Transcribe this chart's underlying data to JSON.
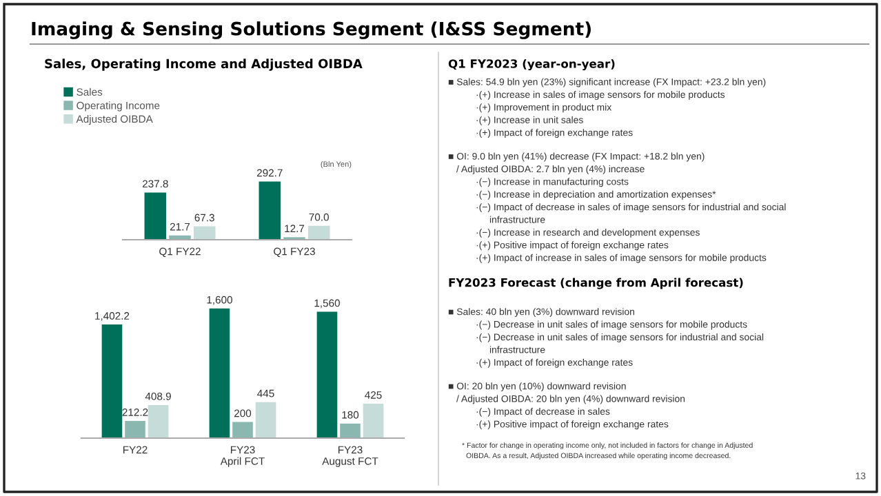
{
  "chart_data": [
    {
      "type": "bar",
      "title": "Imaging & Sensing Solutions Segment (I&SS Segment)",
      "subtitle": "Sales, Operating Income and Adjusted OIBDA",
      "ylabel": "(Bln Yen)",
      "categories": [
        "Q1 FY22",
        "Q1 FY23"
      ],
      "series": [
        {
          "name": "Sales",
          "color": "#00705a",
          "values": [
            237.8,
            292.7
          ],
          "value_labels": [
            "237.8",
            "292.7"
          ]
        },
        {
          "name": "Operating Income",
          "color": "#8ab8b0",
          "values": [
            21.7,
            12.7
          ],
          "value_labels": [
            "21.7",
            "12.7"
          ]
        },
        {
          "name": "Adjusted OIBDA",
          "color": "#c5dcd8",
          "values": [
            67.3,
            70.0
          ],
          "value_labels": [
            "67.3",
            "70.0"
          ]
        }
      ],
      "legend": "top left"
    },
    {
      "type": "bar",
      "categories": [
        "FY22",
        "FY23\nApril FCT",
        "FY23\nAugust FCT"
      ],
      "series": [
        {
          "color": "#00705a",
          "values": [
            1402.2,
            1600,
            1560
          ],
          "value_labels": [
            "1,402.2",
            "1,600",
            "1,560"
          ]
        },
        {
          "color": "#8ab8b0",
          "values": [
            212.2,
            200,
            180
          ],
          "value_labels": [
            "212.2",
            "200",
            "180"
          ]
        },
        {
          "color": "#c5dcd8",
          "values": [
            408.9,
            445,
            425
          ],
          "value_labels": [
            "408.9",
            "445",
            "425"
          ]
        }
      ]
    },
    {
      "type": "other",
      "title": "Q1 FY2023 (year-on-year)",
      "annotations": [
        "■ Sales: 54.9 bln yen (23%) significant increase (FX Impact: +23.2 bln yen)",
        "·(+) Increase in sales of image sensors for mobile products",
        "·(+) Improvement in product mix",
        "·(+) Increase in unit sales",
        "·(+) Impact of foreign exchange rates",
        "■ OI: 9.0 bln yen (41%) decrease (FX Impact: +18.2 bln yen)",
        "/ Adjusted OIBDA: 2.7 bln yen (4%) increase",
        "·(−) Increase in manufacturing costs",
        "·(−) Increase in depreciation and amortization expenses*",
        "·(−) Impact of decrease in sales of image sensors for industrial and social",
        "infrastructure",
        "·(−) Increase in research and development expenses",
        "·(+) Positive impact of foreign exchange rates",
        "·(+) Impact of increase in sales of image sensors for mobile products",
        "FY2023 Forecast (change from April forecast)",
        "■ Sales: 40 bln yen (3%) downward revision",
        "·(−) Decrease in unit sales of image sensors for mobile products",
        "·(−) Decrease in unit sales of image sensors for industrial and social",
        "infrastructure",
        "·(+) Impact of foreign exchange rates",
        "■ OI: 20 bln yen (10%) downward revision",
        "/ Adjusted OIBDA: 20 bln yen (4%) downward revision",
        "·(−) Impact of decrease in sales",
        "·(+) Positive impact of foreign exchange rates",
        "* Factor for change in operating income only, not included in factors for change in Adjusted",
        "OIBDA. As a result, Adjusted OIBDA increased while operating income decreased.",
        "13"
      ]
    }
  ]
}
